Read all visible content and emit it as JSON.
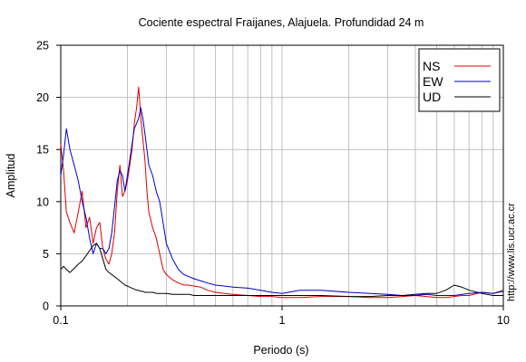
{
  "chart_data": {
    "type": "line",
    "title": "Cociente espectral Fraijanes, Alajuela. Profundidad 24 m",
    "xlabel": "Periodo (s)",
    "ylabel": "Amplitud",
    "xscale": "log",
    "xlim": [
      0.1,
      10
    ],
    "ylim": [
      0,
      25
    ],
    "x_ticks": [
      0.1,
      1,
      10
    ],
    "x_tick_labels": [
      "0.1",
      "1",
      "10"
    ],
    "y_ticks": [
      0,
      5,
      10,
      15,
      20,
      25
    ],
    "y_tick_labels": [
      "0",
      "5",
      "10",
      "15",
      "20",
      "25"
    ],
    "grid": true,
    "legend_position": "top-right",
    "series": [
      {
        "name": "NS",
        "color": "#e00000",
        "x": [
          0.1,
          0.103,
          0.106,
          0.11,
          0.115,
          0.12,
          0.125,
          0.13,
          0.135,
          0.14,
          0.145,
          0.15,
          0.155,
          0.16,
          0.165,
          0.17,
          0.175,
          0.18,
          0.185,
          0.19,
          0.195,
          0.2,
          0.205,
          0.21,
          0.215,
          0.22,
          0.225,
          0.23,
          0.235,
          0.24,
          0.245,
          0.25,
          0.26,
          0.27,
          0.28,
          0.29,
          0.3,
          0.32,
          0.34,
          0.36,
          0.38,
          0.4,
          0.43,
          0.46,
          0.5,
          0.55,
          0.6,
          0.7,
          0.8,
          0.9,
          1.0,
          1.2,
          1.5,
          2.0,
          2.5,
          3.0,
          3.5,
          4.0,
          4.5,
          5.0,
          5.5,
          6.0,
          6.5,
          7.0,
          8.0,
          9.0,
          10.0
        ],
        "y": [
          15.5,
          13.0,
          9.0,
          8.0,
          7.0,
          9.0,
          11.0,
          7.5,
          8.5,
          6.0,
          7.5,
          8.0,
          5.5,
          4.5,
          4.0,
          5.0,
          7.0,
          11.0,
          13.5,
          10.5,
          11.0,
          12.0,
          13.5,
          15.0,
          17.5,
          19.0,
          21.0,
          18.0,
          16.0,
          14.0,
          11.0,
          9.0,
          7.5,
          6.5,
          5.0,
          3.5,
          3.0,
          2.5,
          2.2,
          2.0,
          2.0,
          1.9,
          1.8,
          1.5,
          1.3,
          1.2,
          1.1,
          1.0,
          0.9,
          0.9,
          0.8,
          0.8,
          0.9,
          0.9,
          0.8,
          0.8,
          0.9,
          1.0,
          0.9,
          0.8,
          0.8,
          0.9,
          1.0,
          1.0,
          1.3,
          1.2,
          1.5
        ]
      },
      {
        "name": "EW",
        "color": "#0000c8",
        "x": [
          0.1,
          0.103,
          0.106,
          0.11,
          0.115,
          0.12,
          0.125,
          0.13,
          0.135,
          0.14,
          0.145,
          0.15,
          0.155,
          0.16,
          0.165,
          0.17,
          0.175,
          0.18,
          0.185,
          0.19,
          0.195,
          0.2,
          0.205,
          0.21,
          0.215,
          0.22,
          0.225,
          0.23,
          0.235,
          0.24,
          0.245,
          0.25,
          0.26,
          0.27,
          0.28,
          0.29,
          0.3,
          0.32,
          0.34,
          0.36,
          0.38,
          0.4,
          0.43,
          0.46,
          0.5,
          0.55,
          0.6,
          0.7,
          0.8,
          0.9,
          1.0,
          1.2,
          1.5,
          2.0,
          2.5,
          3.0,
          3.5,
          4.0,
          4.5,
          5.0,
          5.5,
          6.0,
          6.5,
          7.0,
          8.0,
          9.0,
          10.0
        ],
        "y": [
          12.5,
          14.5,
          17.0,
          15.0,
          13.5,
          12.0,
          10.0,
          8.5,
          6.5,
          5.0,
          6.0,
          5.5,
          5.5,
          5.0,
          5.5,
          7.0,
          9.5,
          12.0,
          13.0,
          12.5,
          11.0,
          12.5,
          14.0,
          15.5,
          17.0,
          17.5,
          18.0,
          19.0,
          18.0,
          16.5,
          15.0,
          13.5,
          12.5,
          11.0,
          10.0,
          8.0,
          6.0,
          4.5,
          3.5,
          3.0,
          2.8,
          2.6,
          2.4,
          2.2,
          2.0,
          1.9,
          1.8,
          1.7,
          1.5,
          1.3,
          1.2,
          1.5,
          1.5,
          1.3,
          1.2,
          1.1,
          1.0,
          1.0,
          1.1,
          1.0,
          1.0,
          1.0,
          1.1,
          1.2,
          1.3,
          1.2,
          1.4
        ]
      },
      {
        "name": "UD",
        "color": "#000000",
        "x": [
          0.1,
          0.103,
          0.106,
          0.11,
          0.115,
          0.12,
          0.125,
          0.13,
          0.135,
          0.14,
          0.145,
          0.15,
          0.155,
          0.16,
          0.165,
          0.17,
          0.175,
          0.18,
          0.185,
          0.19,
          0.195,
          0.2,
          0.205,
          0.21,
          0.215,
          0.22,
          0.225,
          0.23,
          0.235,
          0.24,
          0.245,
          0.25,
          0.26,
          0.27,
          0.28,
          0.29,
          0.3,
          0.32,
          0.34,
          0.36,
          0.38,
          0.4,
          0.43,
          0.46,
          0.5,
          0.55,
          0.6,
          0.7,
          0.8,
          0.9,
          1.0,
          1.2,
          1.5,
          2.0,
          2.5,
          3.0,
          3.5,
          4.0,
          4.5,
          5.0,
          5.5,
          6.0,
          6.5,
          7.0,
          8.0,
          9.0,
          10.0
        ],
        "y": [
          3.5,
          3.8,
          3.5,
          3.2,
          3.6,
          4.0,
          4.3,
          4.8,
          5.3,
          5.8,
          6.0,
          5.5,
          4.5,
          3.5,
          3.2,
          3.0,
          2.8,
          2.6,
          2.4,
          2.2,
          2.0,
          1.9,
          1.8,
          1.7,
          1.6,
          1.5,
          1.5,
          1.4,
          1.4,
          1.3,
          1.3,
          1.3,
          1.3,
          1.2,
          1.2,
          1.2,
          1.2,
          1.1,
          1.1,
          1.1,
          1.1,
          1.0,
          1.0,
          1.0,
          1.0,
          1.0,
          1.0,
          1.0,
          1.0,
          1.0,
          1.0,
          1.0,
          1.0,
          0.9,
          0.9,
          1.0,
          1.0,
          1.1,
          1.2,
          1.2,
          1.5,
          2.0,
          1.8,
          1.5,
          1.2,
          1.0,
          1.0
        ]
      }
    ],
    "annotation": "http://www.lis.ucr.ac.cr"
  }
}
